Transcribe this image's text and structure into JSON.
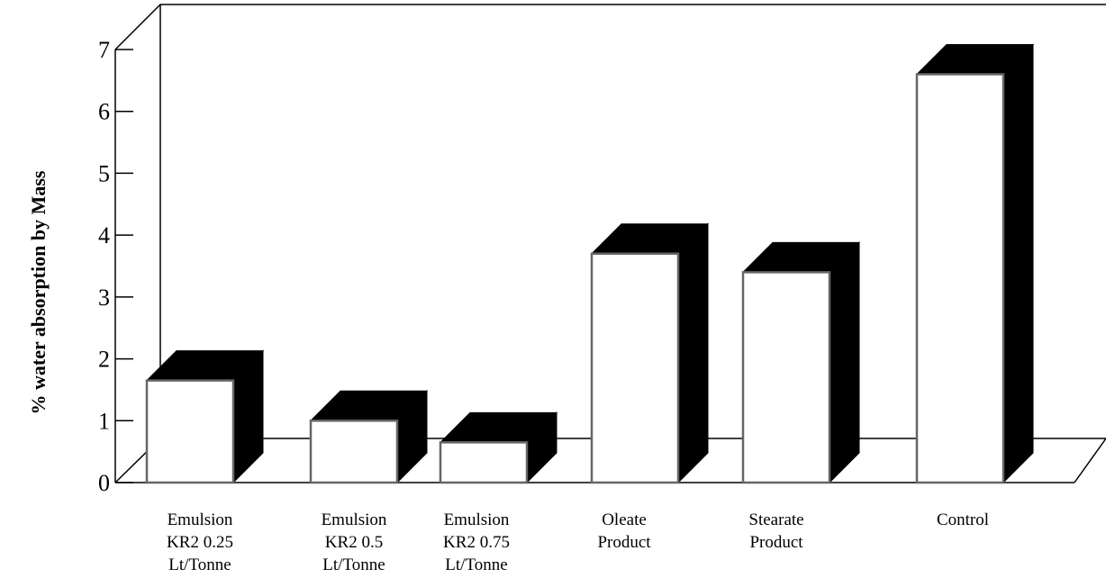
{
  "chart_data": {
    "type": "bar",
    "style": "3d",
    "title": "",
    "ylabel": "% water absorption by Mass",
    "xlabel": "",
    "ylim": [
      0,
      7
    ],
    "yticks": [
      "0",
      "1",
      "2",
      "3",
      "4",
      "5",
      "6",
      "7"
    ],
    "grid": false,
    "categories": [
      [
        "Emulsion",
        "KR2 0.25",
        "Lt/Tonne"
      ],
      [
        "Emulsion",
        "KR2 0.5",
        "Lt/Tonne"
      ],
      [
        "Emulsion",
        "KR2 0.75",
        "Lt/Tonne"
      ],
      [
        "Oleate",
        "Product"
      ],
      [
        "Stearate",
        "Product"
      ],
      [
        "Control"
      ]
    ],
    "values": [
      1.65,
      1.0,
      0.65,
      3.7,
      3.4,
      6.6
    ],
    "colors": {
      "bar_front": "#ffffff",
      "bar_depth": "#000000",
      "bar_edge": "#666666",
      "axis": "#000000"
    }
  }
}
